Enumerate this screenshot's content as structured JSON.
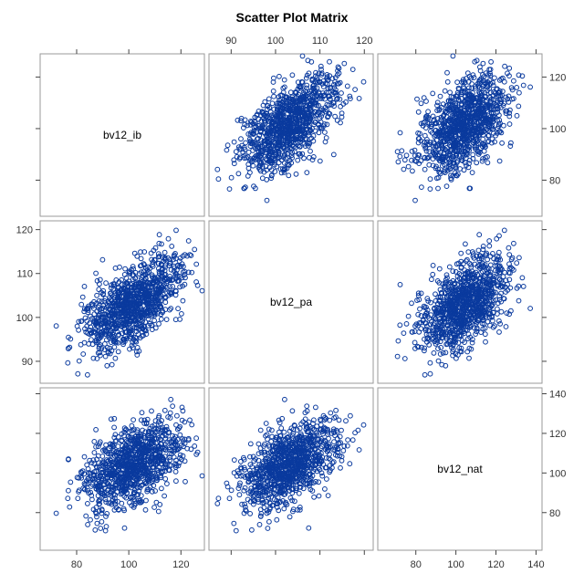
{
  "chart_data": {
    "type": "scatter",
    "title": "Scatter Plot Matrix",
    "variables": [
      "bv12_ib",
      "bv12_pa",
      "bv12_nat"
    ],
    "axes": {
      "bv12_ib": {
        "lim": [
          66,
          129
        ],
        "ticks": [
          80,
          100,
          120
        ]
      },
      "bv12_pa": {
        "lim": [
          85,
          122
        ],
        "ticks": [
          90,
          100,
          110,
          120
        ]
      },
      "bv12_nat": {
        "lim": [
          61,
          143
        ],
        "ticks": [
          80,
          100,
          120,
          140
        ]
      }
    },
    "distribution": {
      "n_points": 1000,
      "means": {
        "bv12_ib": 102,
        "bv12_pa": 103,
        "bv12_nat": 104
      },
      "sds": {
        "bv12_ib": 9.5,
        "bv12_pa": 5.3,
        "bv12_nat": 11
      },
      "correlations": {
        "ib_pa": 0.6,
        "ib_nat": 0.5,
        "pa_nat": 0.5
      }
    },
    "grid": false,
    "legend": "none",
    "marker": "open-circle",
    "point_color": "#0a3a9e",
    "frame_color": "#9a9a9a"
  }
}
